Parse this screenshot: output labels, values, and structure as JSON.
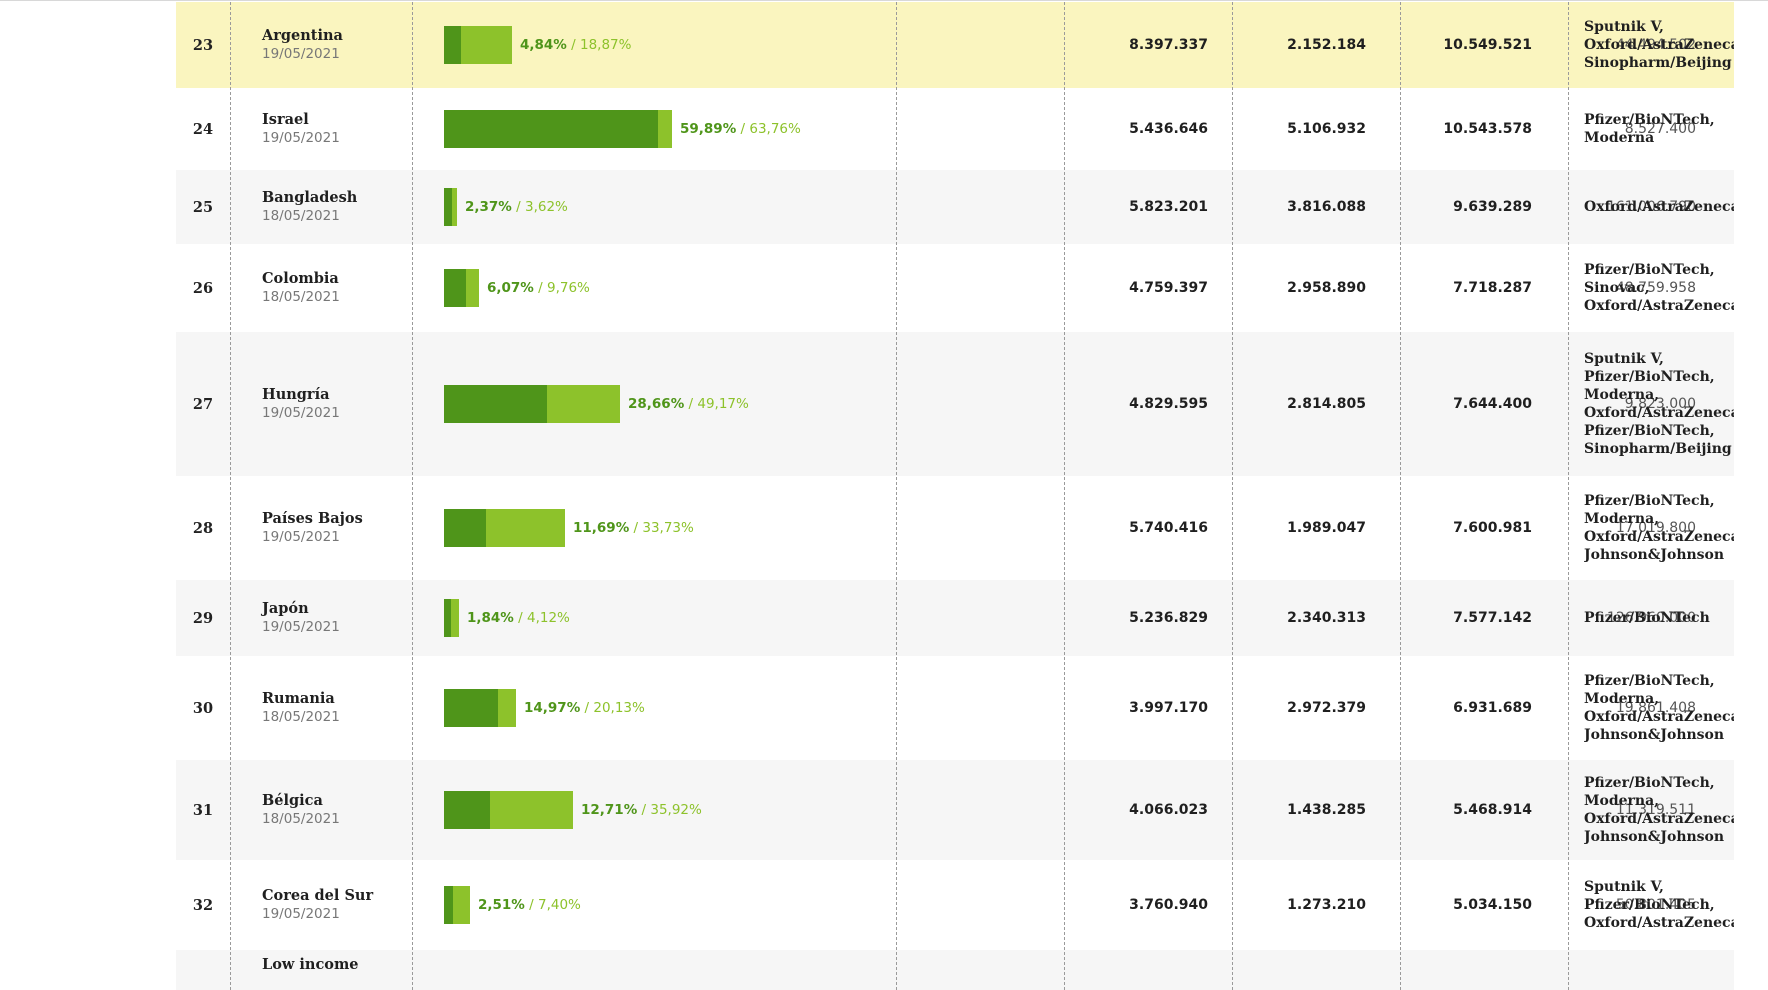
{
  "rows": [
    {
      "rank": "23",
      "country": "Argentina",
      "date": "19/05/2021",
      "full_pct": "4,84%",
      "total_pct": "18,87%",
      "full_frac": 0.0484,
      "total_frac": 0.1887,
      "col1": "8.397.337",
      "col2": "2.152.184",
      "col3": "10.549.521",
      "population": "44.494.502",
      "vaccines": [
        "Sputnik V,",
        "Oxford/AstraZeneca,",
        "Sinopharm/Beijing"
      ],
      "highlight": true
    },
    {
      "rank": "24",
      "country": "Israel",
      "date": "19/05/2021",
      "full_pct": "59,89%",
      "total_pct": "63,76%",
      "full_frac": 0.5989,
      "total_frac": 0.6376,
      "col1": "5.436.646",
      "col2": "5.106.932",
      "col3": "10.543.578",
      "population": "8.527.400",
      "vaccines": [
        "Pfizer/BioNTech,",
        "Moderna"
      ]
    },
    {
      "rank": "25",
      "country": "Bangladesh",
      "date": "18/05/2021",
      "full_pct": "2,37%",
      "total_pct": "3,62%",
      "full_frac": 0.0237,
      "total_frac": 0.0362,
      "col1": "5.823.201",
      "col2": "3.816.088",
      "col3": "9.639.289",
      "population": "161.006.790",
      "vaccines": [
        "Oxford/AstraZeneca"
      ]
    },
    {
      "rank": "26",
      "country": "Colombia",
      "date": "18/05/2021",
      "full_pct": "6,07%",
      "total_pct": "9,76%",
      "full_frac": 0.0607,
      "total_frac": 0.0976,
      "col1": "4.759.397",
      "col2": "2.958.890",
      "col3": "7.718.287",
      "population": "48.759.958",
      "vaccines": [
        "Pfizer/BioNTech,",
        "Sinovac,",
        "Oxford/AstraZeneca"
      ]
    },
    {
      "rank": "27",
      "country": "Hungría",
      "date": "19/05/2021",
      "full_pct": "28,66%",
      "total_pct": "49,17%",
      "full_frac": 0.2866,
      "total_frac": 0.4917,
      "col1": "4.829.595",
      "col2": "2.814.805",
      "col3": "7.644.400",
      "population": "9.823.000",
      "vaccines": [
        "Sputnik V,",
        "Pfizer/BioNTech,",
        "Moderna,",
        "Oxford/AstraZeneca,",
        "Pfizer/BioNTech,",
        "Sinopharm/Beijing"
      ]
    },
    {
      "rank": "28",
      "country": "Países Bajos",
      "date": "19/05/2021",
      "full_pct": "11,69%",
      "total_pct": "33,73%",
      "full_frac": 0.1169,
      "total_frac": 0.3373,
      "col1": "5.740.416",
      "col2": "1.989.047",
      "col3": "7.600.981",
      "population": "17.019.800",
      "vaccines": [
        "Pfizer/BioNTech,",
        "Moderna,",
        "Oxford/AstraZeneca,",
        "Johnson&Johnson"
      ]
    },
    {
      "rank": "29",
      "country": "Japón",
      "date": "19/05/2021",
      "full_pct": "1,84%",
      "total_pct": "4,12%",
      "full_frac": 0.0184,
      "total_frac": 0.0412,
      "col1": "5.236.829",
      "col2": "2.340.313",
      "col3": "7.577.142",
      "population": "126.960.000",
      "vaccines": [
        "Pfizer/BioNTech"
      ]
    },
    {
      "rank": "30",
      "country": "Rumania",
      "date": "18/05/2021",
      "full_pct": "14,97%",
      "total_pct": "20,13%",
      "full_frac": 0.1497,
      "total_frac": 0.2013,
      "col1": "3.997.170",
      "col2": "2.972.379",
      "col3": "6.931.689",
      "population": "19.861.408",
      "vaccines": [
        "Pfizer/BioNTech,",
        "Moderna,",
        "Oxford/AstraZeneca,",
        "Johnson&Johnson"
      ]
    },
    {
      "rank": "31",
      "country": "Bélgica",
      "date": "18/05/2021",
      "full_pct": "12,71%",
      "total_pct": "35,92%",
      "full_frac": 0.1271,
      "total_frac": 0.3592,
      "col1": "4.066.023",
      "col2": "1.438.285",
      "col3": "5.468.914",
      "population": "11.319.511",
      "vaccines": [
        "Pfizer/BioNTech,",
        "Moderna,",
        "Oxford/AstraZeneca,",
        "Johnson&Johnson"
      ]
    },
    {
      "rank": "32",
      "country": "Corea del Sur",
      "date": "19/05/2021",
      "full_pct": "2,51%",
      "total_pct": "7,40%",
      "full_frac": 0.0251,
      "total_frac": 0.074,
      "col1": "3.760.940",
      "col2": "1.273.210",
      "col3": "5.034.150",
      "population": "50.801.405",
      "vaccines": [
        "Sputnik V,",
        "Pfizer/BioNTech,",
        "Oxford/AstraZeneca"
      ]
    }
  ],
  "cutoff_row": {
    "country": "Low income"
  },
  "colors": {
    "full": "#4f951a",
    "total": "#8dc22b",
    "highlight": "#faf5bf",
    "odd": "#f6f6f6"
  }
}
